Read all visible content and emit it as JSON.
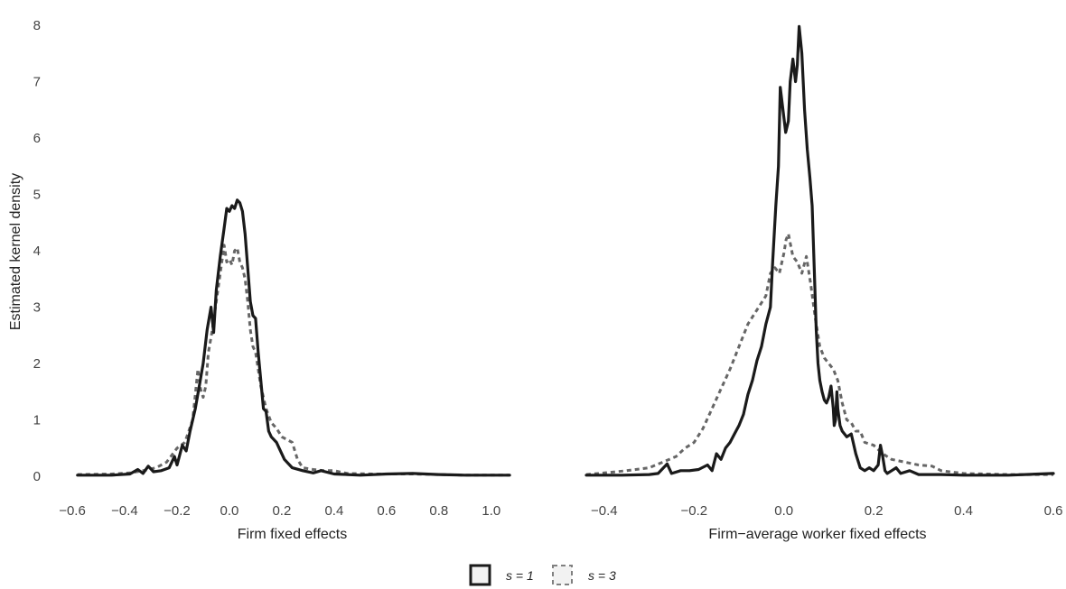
{
  "ylabel": "Estimated kernel density",
  "legend": {
    "position": "bottom",
    "items": [
      {
        "label": "s = 1",
        "color": "#1a1a1a",
        "dash": "solid"
      },
      {
        "label": "s = 3",
        "color": "#666666",
        "dash": "dashed"
      }
    ]
  },
  "chart_data": [
    {
      "type": "line",
      "title": "",
      "xlabel": "Firm fixed effects",
      "ylabel": "Estimated kernel density",
      "xlim": [
        -0.6,
        1.08
      ],
      "ylim": [
        0,
        8
      ],
      "xticks": [
        -0.6,
        -0.4,
        -0.2,
        0.0,
        0.2,
        0.4,
        0.6,
        0.8,
        1.0
      ],
      "xtick_labels": [
        "−0.6",
        "−0.4",
        "−0.2",
        "0.0",
        "0.2",
        "0.4",
        "0.6",
        "0.8",
        "1.0"
      ],
      "yticks": [
        0,
        1,
        2,
        3,
        4,
        5,
        6,
        7,
        8
      ],
      "ytick_labels": [
        "0",
        "1",
        "2",
        "3",
        "4",
        "5",
        "6",
        "7",
        "8"
      ],
      "grid": false,
      "series": [
        {
          "name": "s = 1",
          "color": "#1a1a1a",
          "dash": "solid",
          "points": [
            [
              -0.58,
              0.02
            ],
            [
              -0.45,
              0.02
            ],
            [
              -0.38,
              0.04
            ],
            [
              -0.35,
              0.12
            ],
            [
              -0.33,
              0.05
            ],
            [
              -0.31,
              0.18
            ],
            [
              -0.29,
              0.08
            ],
            [
              -0.26,
              0.1
            ],
            [
              -0.23,
              0.15
            ],
            [
              -0.21,
              0.35
            ],
            [
              -0.2,
              0.2
            ],
            [
              -0.18,
              0.55
            ],
            [
              -0.165,
              0.45
            ],
            [
              -0.15,
              0.8
            ],
            [
              -0.13,
              1.2
            ],
            [
              -0.115,
              1.6
            ],
            [
              -0.1,
              2.0
            ],
            [
              -0.085,
              2.6
            ],
            [
              -0.07,
              3.0
            ],
            [
              -0.06,
              2.55
            ],
            [
              -0.05,
              3.3
            ],
            [
              -0.035,
              3.9
            ],
            [
              -0.02,
              4.4
            ],
            [
              -0.01,
              4.75
            ],
            [
              0.0,
              4.7
            ],
            [
              0.01,
              4.8
            ],
            [
              0.02,
              4.75
            ],
            [
              0.03,
              4.9
            ],
            [
              0.04,
              4.85
            ],
            [
              0.05,
              4.7
            ],
            [
              0.06,
              4.3
            ],
            [
              0.07,
              3.7
            ],
            [
              0.08,
              3.1
            ],
            [
              0.09,
              2.85
            ],
            [
              0.1,
              2.8
            ],
            [
              0.11,
              2.2
            ],
            [
              0.12,
              1.7
            ],
            [
              0.13,
              1.2
            ],
            [
              0.14,
              1.15
            ],
            [
              0.15,
              0.8
            ],
            [
              0.16,
              0.7
            ],
            [
              0.18,
              0.6
            ],
            [
              0.19,
              0.5
            ],
            [
              0.21,
              0.3
            ],
            [
              0.24,
              0.15
            ],
            [
              0.28,
              0.1
            ],
            [
              0.32,
              0.06
            ],
            [
              0.35,
              0.1
            ],
            [
              0.4,
              0.04
            ],
            [
              0.45,
              0.03
            ],
            [
              0.5,
              0.02
            ],
            [
              0.6,
              0.04
            ],
            [
              0.7,
              0.05
            ],
            [
              0.8,
              0.03
            ],
            [
              0.9,
              0.02
            ],
            [
              1.07,
              0.02
            ]
          ]
        },
        {
          "name": "s = 3",
          "color": "#666666",
          "dash": "dashed",
          "points": [
            [
              -0.58,
              0.03
            ],
            [
              -0.45,
              0.04
            ],
            [
              -0.38,
              0.06
            ],
            [
              -0.33,
              0.1
            ],
            [
              -0.28,
              0.15
            ],
            [
              -0.24,
              0.25
            ],
            [
              -0.2,
              0.5
            ],
            [
              -0.17,
              0.6
            ],
            [
              -0.14,
              1.0
            ],
            [
              -0.12,
              1.9
            ],
            [
              -0.11,
              1.55
            ],
            [
              -0.1,
              1.4
            ],
            [
              -0.09,
              1.6
            ],
            [
              -0.08,
              2.2
            ],
            [
              -0.065,
              2.6
            ],
            [
              -0.05,
              3.1
            ],
            [
              -0.035,
              3.6
            ],
            [
              -0.02,
              4.1
            ],
            [
              -0.01,
              3.8
            ],
            [
              0.0,
              3.85
            ],
            [
              0.01,
              3.75
            ],
            [
              0.02,
              4.0
            ],
            [
              0.03,
              4.05
            ],
            [
              0.04,
              3.8
            ],
            [
              0.05,
              3.7
            ],
            [
              0.06,
              3.5
            ],
            [
              0.07,
              3.1
            ],
            [
              0.08,
              2.6
            ],
            [
              0.09,
              2.3
            ],
            [
              0.1,
              2.2
            ],
            [
              0.12,
              1.6
            ],
            [
              0.14,
              1.2
            ],
            [
              0.16,
              0.95
            ],
            [
              0.18,
              0.85
            ],
            [
              0.2,
              0.7
            ],
            [
              0.22,
              0.65
            ],
            [
              0.24,
              0.6
            ],
            [
              0.26,
              0.3
            ],
            [
              0.28,
              0.15
            ],
            [
              0.32,
              0.12
            ],
            [
              0.36,
              0.1
            ],
            [
              0.4,
              0.1
            ],
            [
              0.45,
              0.05
            ],
            [
              0.55,
              0.04
            ],
            [
              0.7,
              0.04
            ],
            [
              0.8,
              0.03
            ],
            [
              0.9,
              0.02
            ],
            [
              1.07,
              0.02
            ]
          ]
        }
      ]
    },
    {
      "type": "line",
      "title": "",
      "xlabel": "Firm−average worker fixed effects",
      "ylabel": "",
      "xlim": [
        -0.45,
        0.6
      ],
      "ylim": [
        0,
        8
      ],
      "xticks": [
        -0.4,
        -0.2,
        0.0,
        0.2,
        0.4,
        0.6
      ],
      "xtick_labels": [
        "−0.4",
        "−0.2",
        "0.0",
        "0.2",
        "0.4",
        "0.6"
      ],
      "yticks": [
        0,
        1,
        2,
        3,
        4,
        5,
        6,
        7,
        8
      ],
      "grid": false,
      "series": [
        {
          "name": "s = 1",
          "color": "#1a1a1a",
          "dash": "solid",
          "points": [
            [
              -0.44,
              0.02
            ],
            [
              -0.36,
              0.02
            ],
            [
              -0.3,
              0.03
            ],
            [
              -0.28,
              0.05
            ],
            [
              -0.26,
              0.22
            ],
            [
              -0.25,
              0.05
            ],
            [
              -0.23,
              0.1
            ],
            [
              -0.21,
              0.1
            ],
            [
              -0.19,
              0.12
            ],
            [
              -0.17,
              0.2
            ],
            [
              -0.16,
              0.1
            ],
            [
              -0.15,
              0.4
            ],
            [
              -0.14,
              0.3
            ],
            [
              -0.13,
              0.5
            ],
            [
              -0.12,
              0.6
            ],
            [
              -0.11,
              0.75
            ],
            [
              -0.1,
              0.9
            ],
            [
              -0.09,
              1.1
            ],
            [
              -0.08,
              1.45
            ],
            [
              -0.07,
              1.7
            ],
            [
              -0.06,
              2.05
            ],
            [
              -0.05,
              2.3
            ],
            [
              -0.04,
              2.7
            ],
            [
              -0.03,
              3.0
            ],
            [
              -0.025,
              3.8
            ],
            [
              -0.018,
              4.8
            ],
            [
              -0.012,
              5.5
            ],
            [
              -0.008,
              6.9
            ],
            [
              -0.002,
              6.5
            ],
            [
              0.004,
              6.1
            ],
            [
              0.01,
              6.3
            ],
            [
              0.014,
              7.0
            ],
            [
              0.02,
              7.4
            ],
            [
              0.026,
              7.0
            ],
            [
              0.03,
              7.3
            ],
            [
              0.034,
              7.98
            ],
            [
              0.04,
              7.5
            ],
            [
              0.046,
              6.5
            ],
            [
              0.052,
              5.8
            ],
            [
              0.058,
              5.3
            ],
            [
              0.063,
              4.8
            ],
            [
              0.068,
              3.6
            ],
            [
              0.072,
              2.6
            ],
            [
              0.076,
              2.0
            ],
            [
              0.08,
              1.7
            ],
            [
              0.085,
              1.5
            ],
            [
              0.09,
              1.35
            ],
            [
              0.095,
              1.3
            ],
            [
              0.1,
              1.4
            ],
            [
              0.105,
              1.6
            ],
            [
              0.11,
              1.2
            ],
            [
              0.112,
              0.9
            ],
            [
              0.115,
              1.0
            ],
            [
              0.118,
              1.5
            ],
            [
              0.12,
              1.2
            ],
            [
              0.125,
              0.9
            ],
            [
              0.13,
              0.8
            ],
            [
              0.14,
              0.7
            ],
            [
              0.15,
              0.75
            ],
            [
              0.16,
              0.4
            ],
            [
              0.17,
              0.15
            ],
            [
              0.18,
              0.1
            ],
            [
              0.19,
              0.15
            ],
            [
              0.2,
              0.1
            ],
            [
              0.21,
              0.2
            ],
            [
              0.215,
              0.55
            ],
            [
              0.22,
              0.35
            ],
            [
              0.225,
              0.1
            ],
            [
              0.23,
              0.05
            ],
            [
              0.24,
              0.1
            ],
            [
              0.25,
              0.15
            ],
            [
              0.26,
              0.05
            ],
            [
              0.28,
              0.1
            ],
            [
              0.3,
              0.03
            ],
            [
              0.35,
              0.03
            ],
            [
              0.4,
              0.02
            ],
            [
              0.5,
              0.02
            ],
            [
              0.6,
              0.05
            ]
          ]
        },
        {
          "name": "s = 3",
          "color": "#666666",
          "dash": "dashed",
          "points": [
            [
              -0.44,
              0.03
            ],
            [
              -0.4,
              0.06
            ],
            [
              -0.35,
              0.1
            ],
            [
              -0.3,
              0.15
            ],
            [
              -0.27,
              0.25
            ],
            [
              -0.24,
              0.35
            ],
            [
              -0.22,
              0.5
            ],
            [
              -0.2,
              0.6
            ],
            [
              -0.18,
              0.85
            ],
            [
              -0.16,
              1.2
            ],
            [
              -0.14,
              1.55
            ],
            [
              -0.12,
              1.9
            ],
            [
              -0.1,
              2.3
            ],
            [
              -0.08,
              2.7
            ],
            [
              -0.06,
              2.95
            ],
            [
              -0.04,
              3.2
            ],
            [
              -0.03,
              3.6
            ],
            [
              -0.02,
              3.7
            ],
            [
              -0.01,
              3.6
            ],
            [
              0.0,
              3.95
            ],
            [
              0.005,
              4.2
            ],
            [
              0.01,
              4.3
            ],
            [
              0.015,
              4.1
            ],
            [
              0.02,
              3.9
            ],
            [
              0.03,
              3.8
            ],
            [
              0.04,
              3.6
            ],
            [
              0.05,
              3.9
            ],
            [
              0.06,
              3.4
            ],
            [
              0.07,
              2.8
            ],
            [
              0.08,
              2.3
            ],
            [
              0.09,
              2.1
            ],
            [
              0.1,
              2.0
            ],
            [
              0.11,
              1.9
            ],
            [
              0.12,
              1.7
            ],
            [
              0.13,
              1.3
            ],
            [
              0.14,
              1.0
            ],
            [
              0.15,
              0.95
            ],
            [
              0.16,
              0.8
            ],
            [
              0.17,
              0.8
            ],
            [
              0.18,
              0.6
            ],
            [
              0.2,
              0.55
            ],
            [
              0.22,
              0.4
            ],
            [
              0.24,
              0.3
            ],
            [
              0.27,
              0.25
            ],
            [
              0.3,
              0.2
            ],
            [
              0.33,
              0.18
            ],
            [
              0.35,
              0.1
            ],
            [
              0.4,
              0.05
            ],
            [
              0.5,
              0.03
            ],
            [
              0.6,
              0.03
            ]
          ]
        }
      ]
    }
  ]
}
